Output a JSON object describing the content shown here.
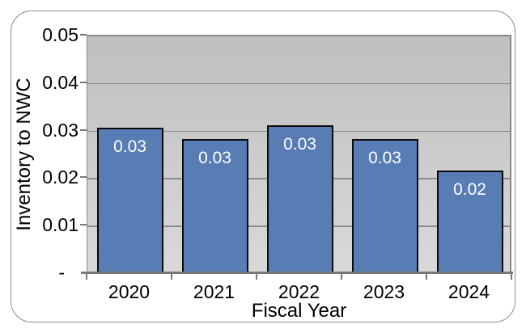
{
  "chart_data": {
    "type": "bar",
    "title": "",
    "xlabel": "Fiscal Year",
    "ylabel": "Inventory to NWC",
    "categories": [
      "2020",
      "2021",
      "2022",
      "2023",
      "2024"
    ],
    "values": [
      0.0305,
      0.028,
      0.031,
      0.028,
      0.0215
    ],
    "bar_labels": [
      "0.03",
      "0.03",
      "0.03",
      "0.03",
      "0.02"
    ],
    "ylim": [
      0,
      0.05
    ],
    "yticks": [
      {
        "value": 0.05,
        "label": "0.05"
      },
      {
        "value": 0.04,
        "label": "0.04"
      },
      {
        "value": 0.03,
        "label": "0.03"
      },
      {
        "value": 0.02,
        "label": "0.02"
      },
      {
        "value": 0.01,
        "label": "0.01"
      },
      {
        "value": 0.0,
        "label": "-"
      }
    ],
    "grid": true,
    "legend": false,
    "colors": {
      "bar_fill": "#587DB5",
      "bar_border": "#0a0a0a",
      "bar_label_text": "#ffffff",
      "plot_bg_top": "#bfbfbf",
      "plot_bg_bottom": "#d9d9d9",
      "gridline": "#8a8a8a",
      "axis_line": "#787878",
      "frame_border": "#8a8a8a",
      "text": "#000000"
    }
  }
}
